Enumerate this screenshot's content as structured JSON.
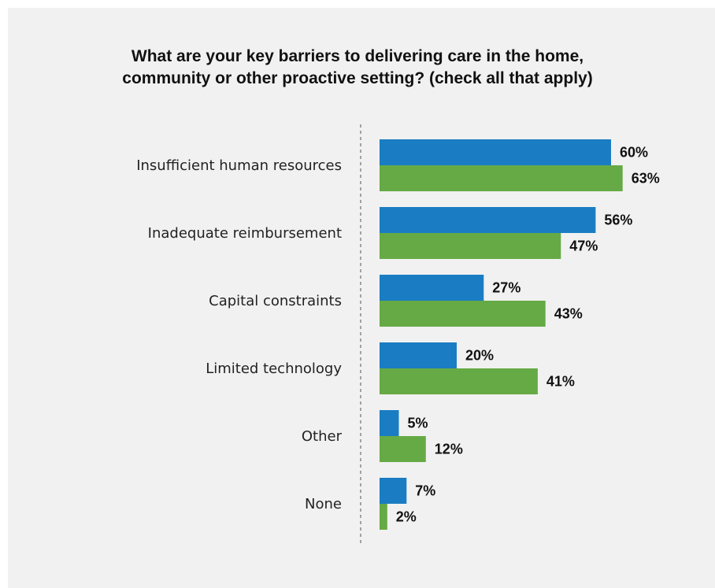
{
  "colors": {
    "background": "#f1f1f1",
    "series_1": "#1a7dc3",
    "series_2": "#66aa45",
    "axis": "#888888"
  },
  "chart_data": {
    "type": "bar",
    "orientation": "horizontal",
    "title_lines": [
      "What are your key barriers to delivering care in the home,",
      "community or other proactive setting? (check all that apply)"
    ],
    "categories": [
      "Insufficient human resources",
      "Inadequate reimbursement",
      "Capital constraints",
      "Limited technology",
      "Other",
      "None"
    ],
    "series": [
      {
        "color": "#1a7dc3",
        "values": [
          60,
          56,
          27,
          20,
          5,
          7
        ]
      },
      {
        "color": "#66aa45",
        "values": [
          63,
          47,
          43,
          41,
          12,
          2
        ]
      }
    ],
    "value_suffix": "%",
    "xlim": [
      0,
      100
    ],
    "axis_line": "dashed",
    "legend": "none"
  }
}
